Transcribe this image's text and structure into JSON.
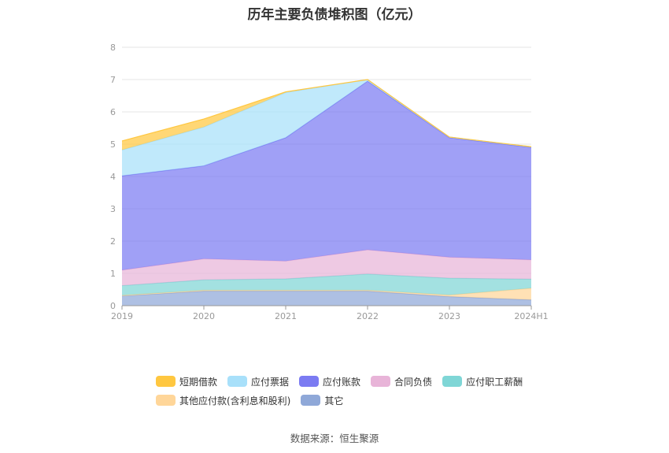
{
  "chart_data": {
    "type": "area",
    "stacked": true,
    "title": "历年主要负债堆积图（亿元）",
    "categories": [
      "2019",
      "2020",
      "2021",
      "2022",
      "2023",
      "2024H1"
    ],
    "ylim": [
      0,
      8
    ],
    "yticks": [
      "0",
      "1",
      "2",
      "3",
      "4",
      "5",
      "6",
      "7",
      "8"
    ],
    "grid": true,
    "legend_position": "bottom",
    "series": [
      {
        "name": "其它",
        "color": "#8fa8d8",
        "values": [
          0.3,
          0.45,
          0.45,
          0.45,
          0.28,
          0.18
        ]
      },
      {
        "name": "其他应付款(含利息和股利)",
        "color": "#ffd699",
        "values": [
          0.02,
          0.03,
          0.03,
          0.03,
          0.05,
          0.36
        ]
      },
      {
        "name": "应付职工薪酬",
        "color": "#7fd6d6",
        "values": [
          0.3,
          0.32,
          0.35,
          0.5,
          0.52,
          0.28
        ]
      },
      {
        "name": "合同负债",
        "color": "#e8b4d8",
        "values": [
          0.48,
          0.65,
          0.55,
          0.75,
          0.65,
          0.6
        ]
      },
      {
        "name": "应付账款",
        "color": "#7b7bf2",
        "values": [
          2.92,
          2.88,
          3.82,
          5.22,
          3.7,
          3.48
        ]
      },
      {
        "name": "应付票据",
        "color": "#a8e0fa",
        "values": [
          0.8,
          1.2,
          1.4,
          0.05,
          0.02,
          0.02
        ]
      },
      {
        "name": "短期借款",
        "color": "#ffc740",
        "values": [
          0.28,
          0.25,
          0.02,
          0.0,
          0.0,
          0.0
        ]
      }
    ],
    "legend_order": [
      "短期借款",
      "应付票据",
      "应付账款",
      "合同负债",
      "应付职工薪酬",
      "其他应付款(含利息和股利)",
      "其它"
    ]
  },
  "source_text": "数据来源：恒生聚源"
}
